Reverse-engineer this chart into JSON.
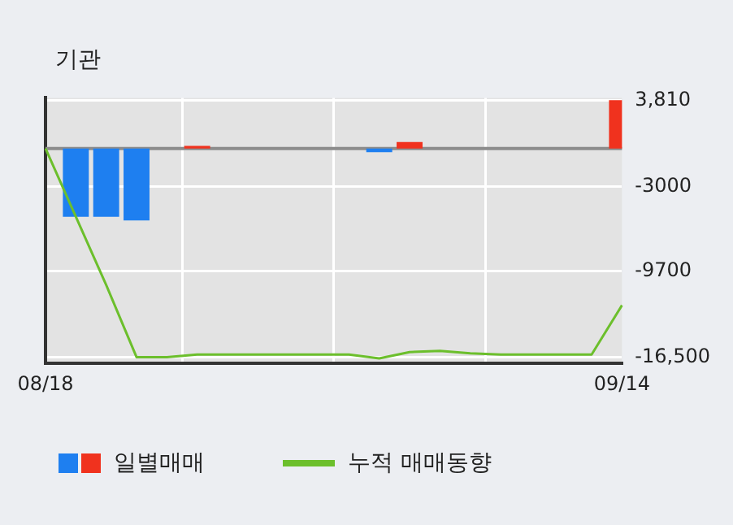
{
  "chart_data": {
    "type": "bar",
    "title": "기관",
    "categories": [
      "08/18",
      null,
      null,
      null,
      null,
      null,
      null,
      null,
      null,
      null,
      null,
      null,
      null,
      null,
      null,
      null,
      null,
      null,
      null,
      "09/14"
    ],
    "series": [
      {
        "name": "일별매매",
        "colors": [
          "#1e7ff0",
          "#1e7ff0",
          "#1e7ff0",
          "#1e7ff0",
          "#1e7ff0",
          "#f0321e",
          "#1e7ff0",
          "#1e7ff0",
          "#1e7ff0",
          "#1e7ff0",
          "#1e7ff0",
          "#1e7ff0",
          "#f0321e",
          "#1e7ff0",
          "#1e7ff0",
          "#1e7ff0",
          "#1e7ff0",
          "#1e7ff0",
          "#1e7ff0",
          "#f0321e"
        ],
        "values": [
          null,
          -5400,
          -5400,
          -5700,
          null,
          200,
          null,
          null,
          null,
          null,
          null,
          -300,
          500,
          null,
          null,
          null,
          null,
          null,
          null,
          3810
        ]
      },
      {
        "name": "누적 매매동향",
        "type": "line",
        "color": "#6cbf2c",
        "values": [
          0,
          -5400,
          -10800,
          -16500,
          -16500,
          -16300,
          -16300,
          -16300,
          -16300,
          -16300,
          -16300,
          -16600,
          -16100,
          -16000,
          -16200,
          -16300,
          -16300,
          -16300,
          -16300,
          -12400
        ]
      }
    ],
    "ylim": [
      -17000,
      4000
    ],
    "yticks": [
      {
        "value": 3810,
        "label": "3,810"
      },
      -3000,
      -9700,
      {
        "value": -16500,
        "label": "-16,500"
      }
    ],
    "ref_lines": [
      {
        "axis": "y",
        "value": 0,
        "color": "#8c8c8c"
      }
    ],
    "grid": true,
    "legend": "bottom"
  }
}
